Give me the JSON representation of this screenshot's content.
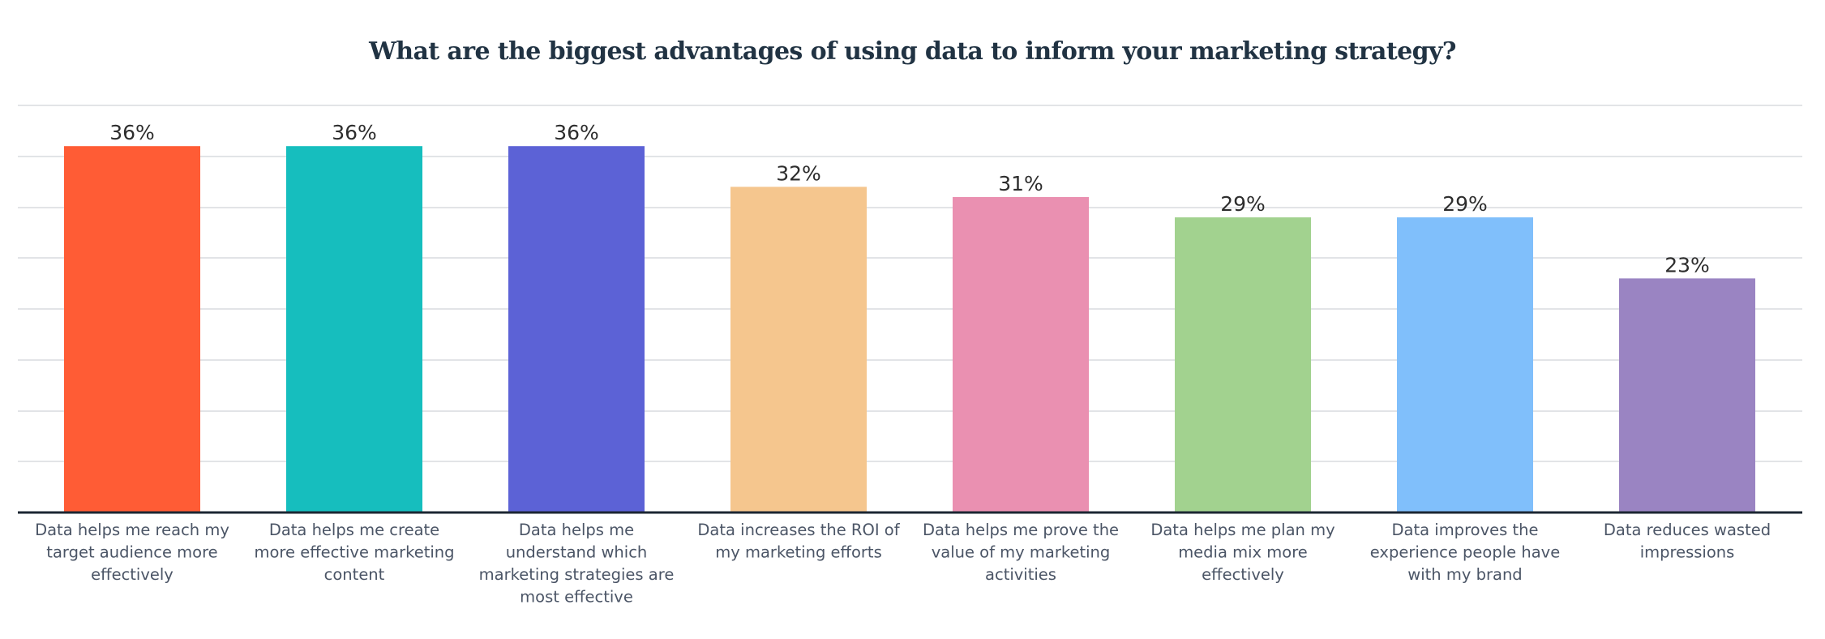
{
  "chart_data": {
    "type": "bar",
    "title": "What are the biggest advantages of using data to inform your marketing strategy?",
    "xlabel": "",
    "ylabel": "",
    "ylim": [
      0,
      40
    ],
    "y_gridline_step": 5,
    "grid": true,
    "legend": "none",
    "value_suffix": "%",
    "categories": [
      "Data helps me reach my target audience more effectively",
      "Data helps me create more effective marketing content",
      "Data helps me understand which marketing strategies are most effective",
      "Data increases the ROI of my marketing efforts",
      "Data helps me prove the value of my marketing activities",
      "Data helps me plan my media mix more effectively",
      "Data improves the experience people have with my brand",
      "Data reduces wasted impressions"
    ],
    "category_label_lines": [
      [
        "Data helps me reach my",
        "target audience more",
        "effectively"
      ],
      [
        "Data helps me create",
        "more effective marketing",
        "content"
      ],
      [
        "Data helps me",
        "understand which",
        "marketing strategies are",
        "most effective"
      ],
      [
        "Data increases the ROI of",
        "my marketing efforts"
      ],
      [
        "Data helps me prove the",
        "value of my marketing",
        "activities"
      ],
      [
        "Data helps me plan my",
        "media mix more",
        "effectively"
      ],
      [
        "Data improves the",
        "experience people have",
        "with my brand"
      ],
      [
        "Data reduces wasted",
        "impressions"
      ]
    ],
    "values": [
      36,
      36,
      36,
      32,
      31,
      29,
      29,
      23
    ],
    "data_labels": [
      "36%",
      "36%",
      "36%",
      "32%",
      "31%",
      "29%",
      "29%",
      "23%"
    ],
    "colors": [
      "#ff5c35",
      "#16bebe",
      "#5c62d6",
      "#f5c68e",
      "#ea90b1",
      "#a2d28f",
      "#80bffb",
      "#9a84c2"
    ]
  },
  "colors": {
    "title": "#213343",
    "baseline": "#1c2733",
    "gridline": "#e2e4e7"
  }
}
